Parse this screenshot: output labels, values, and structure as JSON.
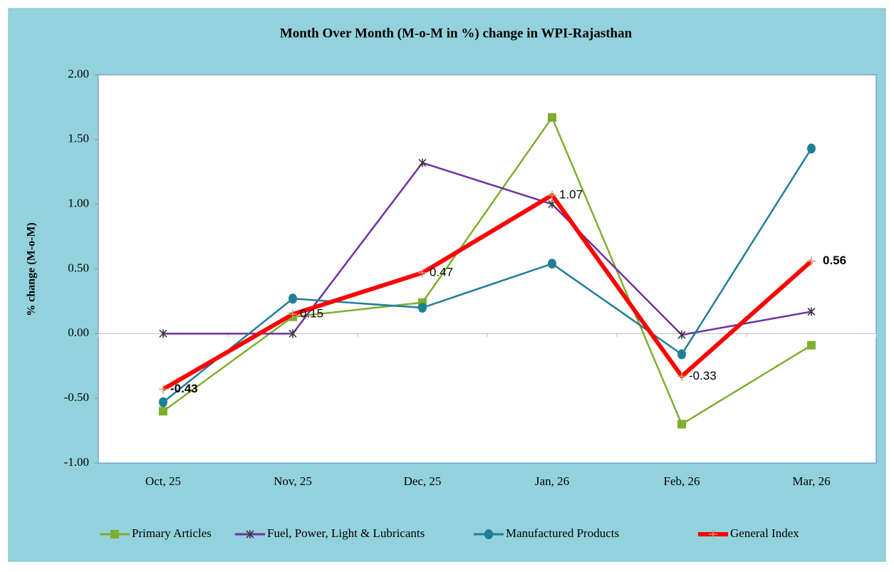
{
  "chart_data": {
    "type": "line",
    "title": "Month Over Month (M-o-M in %) change in WPI-Rajasthan",
    "y_label": "% change (M-o-M)",
    "categories": [
      "Oct, 25",
      "Nov, 25",
      "Dec, 25",
      "Jan, 26",
      "Feb, 26",
      "Mar, 26"
    ],
    "series": [
      {
        "name": "Primary Articles",
        "color": "#7fae2f",
        "marker": "square",
        "values": [
          -0.6,
          0.13,
          0.24,
          1.67,
          -0.7,
          -0.09
        ]
      },
      {
        "name": "Fuel, Power, Light & Lubricants",
        "color": "#7030a0",
        "marker": "star",
        "values": [
          0.0,
          0.0,
          1.32,
          1.0,
          -0.01,
          0.17
        ]
      },
      {
        "name": "Manufactured Products",
        "color": "#1f7f96",
        "marker": "circle",
        "values": [
          -0.53,
          0.27,
          0.2,
          0.54,
          -0.16,
          1.43
        ]
      },
      {
        "name": "General Index",
        "color": "#ff0000",
        "marker": "plus",
        "values": [
          -0.43,
          0.15,
          0.47,
          1.07,
          -0.33,
          0.56
        ],
        "data_labels": true
      }
    ],
    "ylim": [
      -1.0,
      2.0
    ],
    "yticks": [
      {
        "value": -1,
        "label": "-1.00"
      },
      {
        "value": -0.5,
        "label": "-0.50"
      },
      {
        "value": 0,
        "label": "0.00"
      },
      {
        "value": 0.5,
        "label": "0.50"
      },
      {
        "value": 1,
        "label": "1.00"
      },
      {
        "value": 1.5,
        "label": "1.50"
      },
      {
        "value": 2,
        "label": "2.00"
      }
    ],
    "grid": false,
    "legend": "bottom"
  }
}
